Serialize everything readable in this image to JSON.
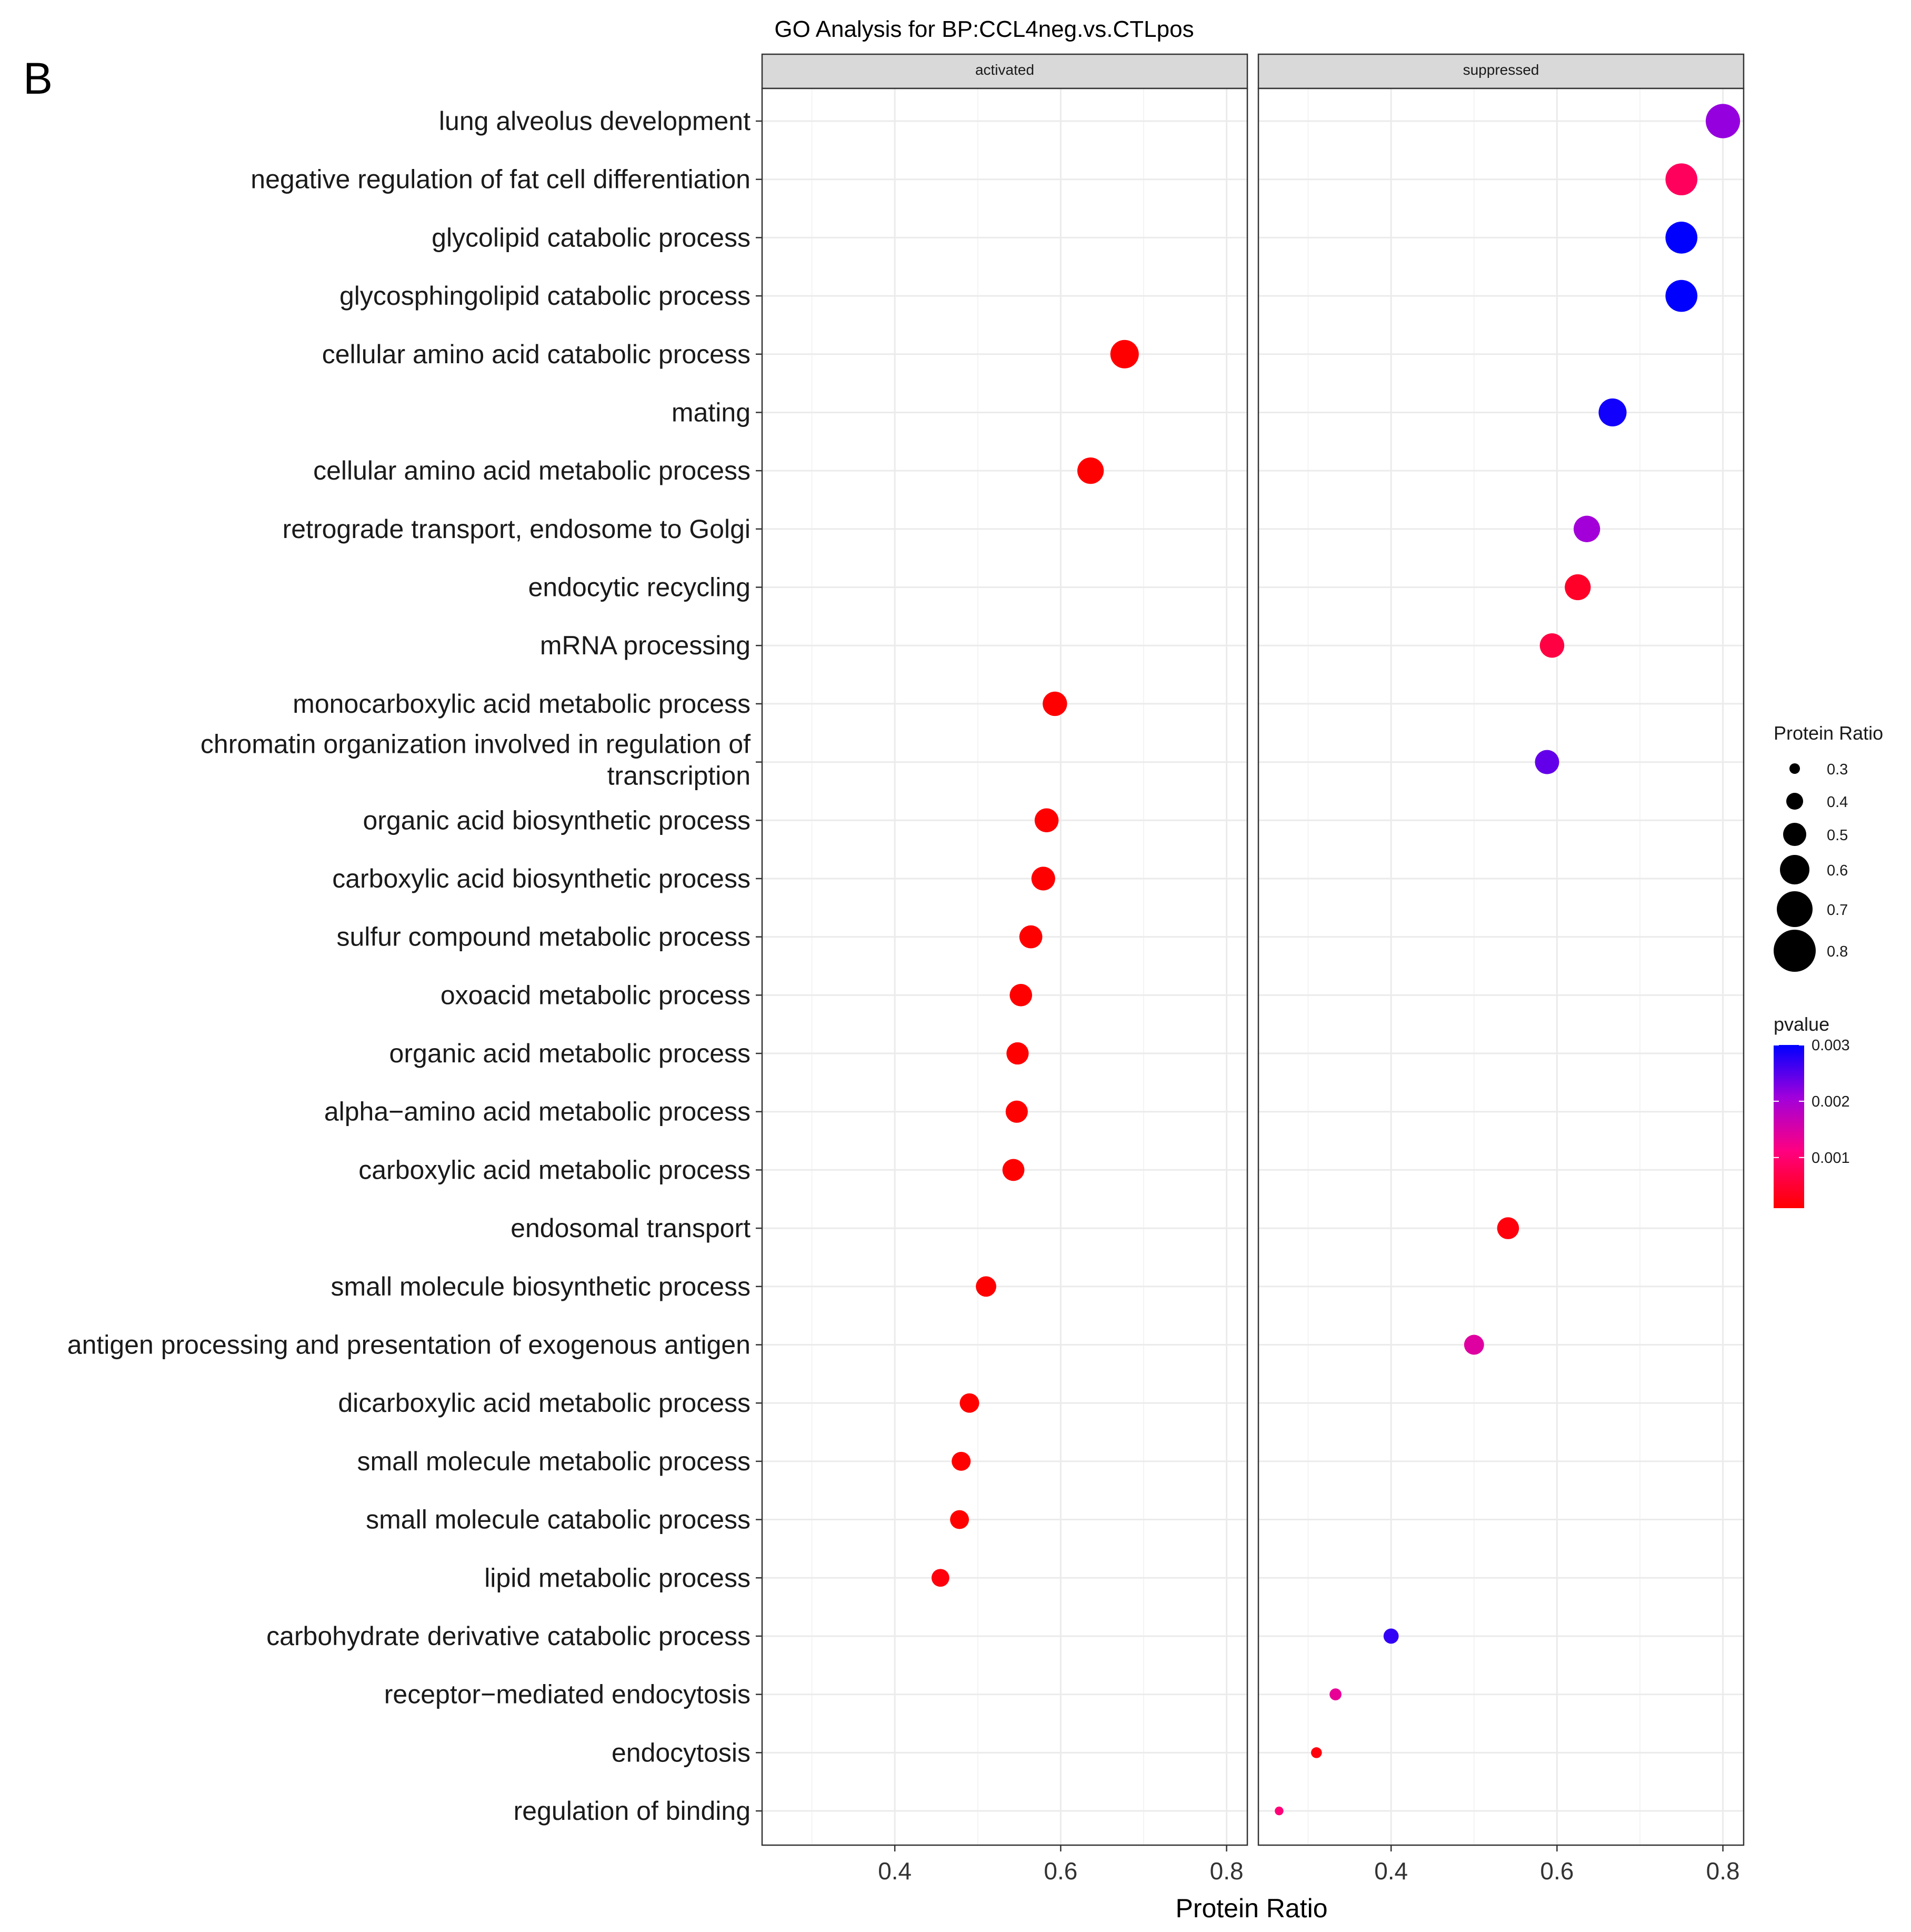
{
  "panel_letter": "B",
  "chart_data": {
    "type": "scatter",
    "title": "GO Analysis for BP:CCL4neg.vs.CTLpos",
    "xlabel": "Protein Ratio",
    "ylabel": "",
    "xlim": [
      0.24,
      0.825
    ],
    "x_ticks": [
      0.4,
      0.6,
      0.8
    ],
    "x_tick_labels": [
      "0.4",
      "0.6",
      "0.8"
    ],
    "grid": true,
    "facets": [
      "activated",
      "suppressed"
    ],
    "categories": [
      "lung alveolus development",
      "negative regulation of fat cell differentiation",
      "glycolipid catabolic process",
      "glycosphingolipid catabolic process",
      "cellular amino acid catabolic process",
      "mating",
      "cellular amino acid metabolic process",
      "retrograde transport, endosome to Golgi",
      "endocytic recycling",
      "mRNA processing",
      "monocarboxylic acid metabolic process",
      "chromatin organization involved in regulation of\ntranscription",
      "organic acid biosynthetic process",
      "carboxylic acid biosynthetic process",
      "sulfur compound metabolic process",
      "oxoacid metabolic process",
      "organic acid metabolic process",
      "alpha−amino acid metabolic process",
      "carboxylic acid metabolic process",
      "endosomal transport",
      "small molecule biosynthetic process",
      "antigen processing and presentation of exogenous antigen",
      "dicarboxylic acid metabolic process",
      "small molecule metabolic process",
      "small molecule catabolic process",
      "lipid metabolic process",
      "carbohydrate derivative catabolic process",
      "receptor−mediated endocytosis",
      "endocytosis",
      "regulation of binding"
    ],
    "points": [
      {
        "category": "lung alveolus development",
        "facet": "suppressed",
        "x": 0.8,
        "pvalue": 0.0021
      },
      {
        "category": "negative regulation of fat cell differentiation",
        "facet": "suppressed",
        "x": 0.75,
        "pvalue": 0.0008
      },
      {
        "category": "glycolipid catabolic process",
        "facet": "suppressed",
        "x": 0.75,
        "pvalue": 0.003
      },
      {
        "category": "glycosphingolipid catabolic process",
        "facet": "suppressed",
        "x": 0.75,
        "pvalue": 0.003
      },
      {
        "category": "cellular amino acid catabolic process",
        "facet": "activated",
        "x": 0.677,
        "pvalue": 0.0001
      },
      {
        "category": "mating",
        "facet": "suppressed",
        "x": 0.667,
        "pvalue": 0.0029
      },
      {
        "category": "cellular amino acid metabolic process",
        "facet": "activated",
        "x": 0.636,
        "pvalue": 0.0001
      },
      {
        "category": "retrograde transport, endosome to Golgi",
        "facet": "suppressed",
        "x": 0.636,
        "pvalue": 0.002
      },
      {
        "category": "endocytic recycling",
        "facet": "suppressed",
        "x": 0.625,
        "pvalue": 0.0004
      },
      {
        "category": "mRNA processing",
        "facet": "suppressed",
        "x": 0.594,
        "pvalue": 0.0006
      },
      {
        "category": "monocarboxylic acid metabolic process",
        "facet": "activated",
        "x": 0.593,
        "pvalue": 0.0001
      },
      {
        "category": "chromatin organization involved in regulation of\ntranscription",
        "facet": "suppressed",
        "x": 0.588,
        "pvalue": 0.0024
      },
      {
        "category": "organic acid biosynthetic process",
        "facet": "activated",
        "x": 0.583,
        "pvalue": 0.0001
      },
      {
        "category": "carboxylic acid biosynthetic process",
        "facet": "activated",
        "x": 0.579,
        "pvalue": 0.0001
      },
      {
        "category": "sulfur compound metabolic process",
        "facet": "activated",
        "x": 0.564,
        "pvalue": 0.0001
      },
      {
        "category": "oxoacid metabolic process",
        "facet": "activated",
        "x": 0.552,
        "pvalue": 0.0001
      },
      {
        "category": "organic acid metabolic process",
        "facet": "activated",
        "x": 0.548,
        "pvalue": 0.0001
      },
      {
        "category": "alpha−amino acid metabolic process",
        "facet": "activated",
        "x": 0.547,
        "pvalue": 0.0001
      },
      {
        "category": "carboxylic acid metabolic process",
        "facet": "activated",
        "x": 0.543,
        "pvalue": 0.0001
      },
      {
        "category": "endosomal transport",
        "facet": "suppressed",
        "x": 0.541,
        "pvalue": 0.0002
      },
      {
        "category": "small molecule biosynthetic process",
        "facet": "activated",
        "x": 0.51,
        "pvalue": 0.0001
      },
      {
        "category": "antigen processing and presentation of exogenous antigen",
        "facet": "suppressed",
        "x": 0.5,
        "pvalue": 0.0014
      },
      {
        "category": "dicarboxylic acid metabolic process",
        "facet": "activated",
        "x": 0.49,
        "pvalue": 0.0001
      },
      {
        "category": "small molecule metabolic process",
        "facet": "activated",
        "x": 0.48,
        "pvalue": 0.0001
      },
      {
        "category": "small molecule catabolic process",
        "facet": "activated",
        "x": 0.478,
        "pvalue": 0.0001
      },
      {
        "category": "lipid metabolic process",
        "facet": "activated",
        "x": 0.455,
        "pvalue": 0.0002
      },
      {
        "category": "carbohydrate derivative catabolic process",
        "facet": "suppressed",
        "x": 0.4,
        "pvalue": 0.0027
      },
      {
        "category": "receptor−mediated endocytosis",
        "facet": "suppressed",
        "x": 0.333,
        "pvalue": 0.0013
      },
      {
        "category": "endocytosis",
        "facet": "suppressed",
        "x": 0.31,
        "pvalue": 0.0002
      },
      {
        "category": "regulation of binding",
        "facet": "suppressed",
        "x": 0.265,
        "pvalue": 0.001
      }
    ],
    "size_legend": {
      "title": "Protein Ratio",
      "values": [
        0.3,
        0.4,
        0.5,
        0.6,
        0.7,
        0.8
      ],
      "labels": [
        "0.3",
        "0.4",
        "0.5",
        "0.6",
        "0.7",
        "0.8"
      ]
    },
    "color_legend": {
      "title": "pvalue",
      "range": [
        0.0001,
        0.003
      ],
      "ticks": [
        0.001,
        0.002,
        0.003
      ],
      "tick_labels": [
        "0.001",
        "0.002",
        "0.003"
      ],
      "low_color": "#ff0000",
      "high_color": "#0000ff"
    },
    "colors": {
      "strip_fill": "#d9d9d9",
      "grid_major": "#ebebeb",
      "grid_minor": "#f4f4f4",
      "panel_border": "#333333"
    }
  }
}
